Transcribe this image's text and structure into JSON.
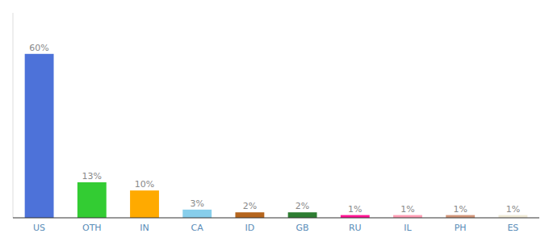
{
  "chart_data": {
    "type": "bar",
    "categories": [
      "US",
      "OTH",
      "IN",
      "CA",
      "ID",
      "GB",
      "RU",
      "IL",
      "PH",
      "ES"
    ],
    "values": [
      60,
      13,
      10,
      3,
      2,
      2,
      1,
      1,
      1,
      1
    ],
    "value_labels": [
      "60%",
      "13%",
      "10%",
      "3%",
      "2%",
      "2%",
      "1%",
      "1%",
      "1%",
      "1%"
    ],
    "colors": [
      "#4d72d9",
      "#33cc33",
      "#ffaa00",
      "#87ceeb",
      "#b5651d",
      "#2e7d32",
      "#ff1493",
      "#ff9eb5",
      "#d2967a",
      "#f0ead6"
    ],
    "ylim": [
      0,
      75
    ],
    "data_labels": true,
    "tick_labels": "x",
    "grid": false
  }
}
